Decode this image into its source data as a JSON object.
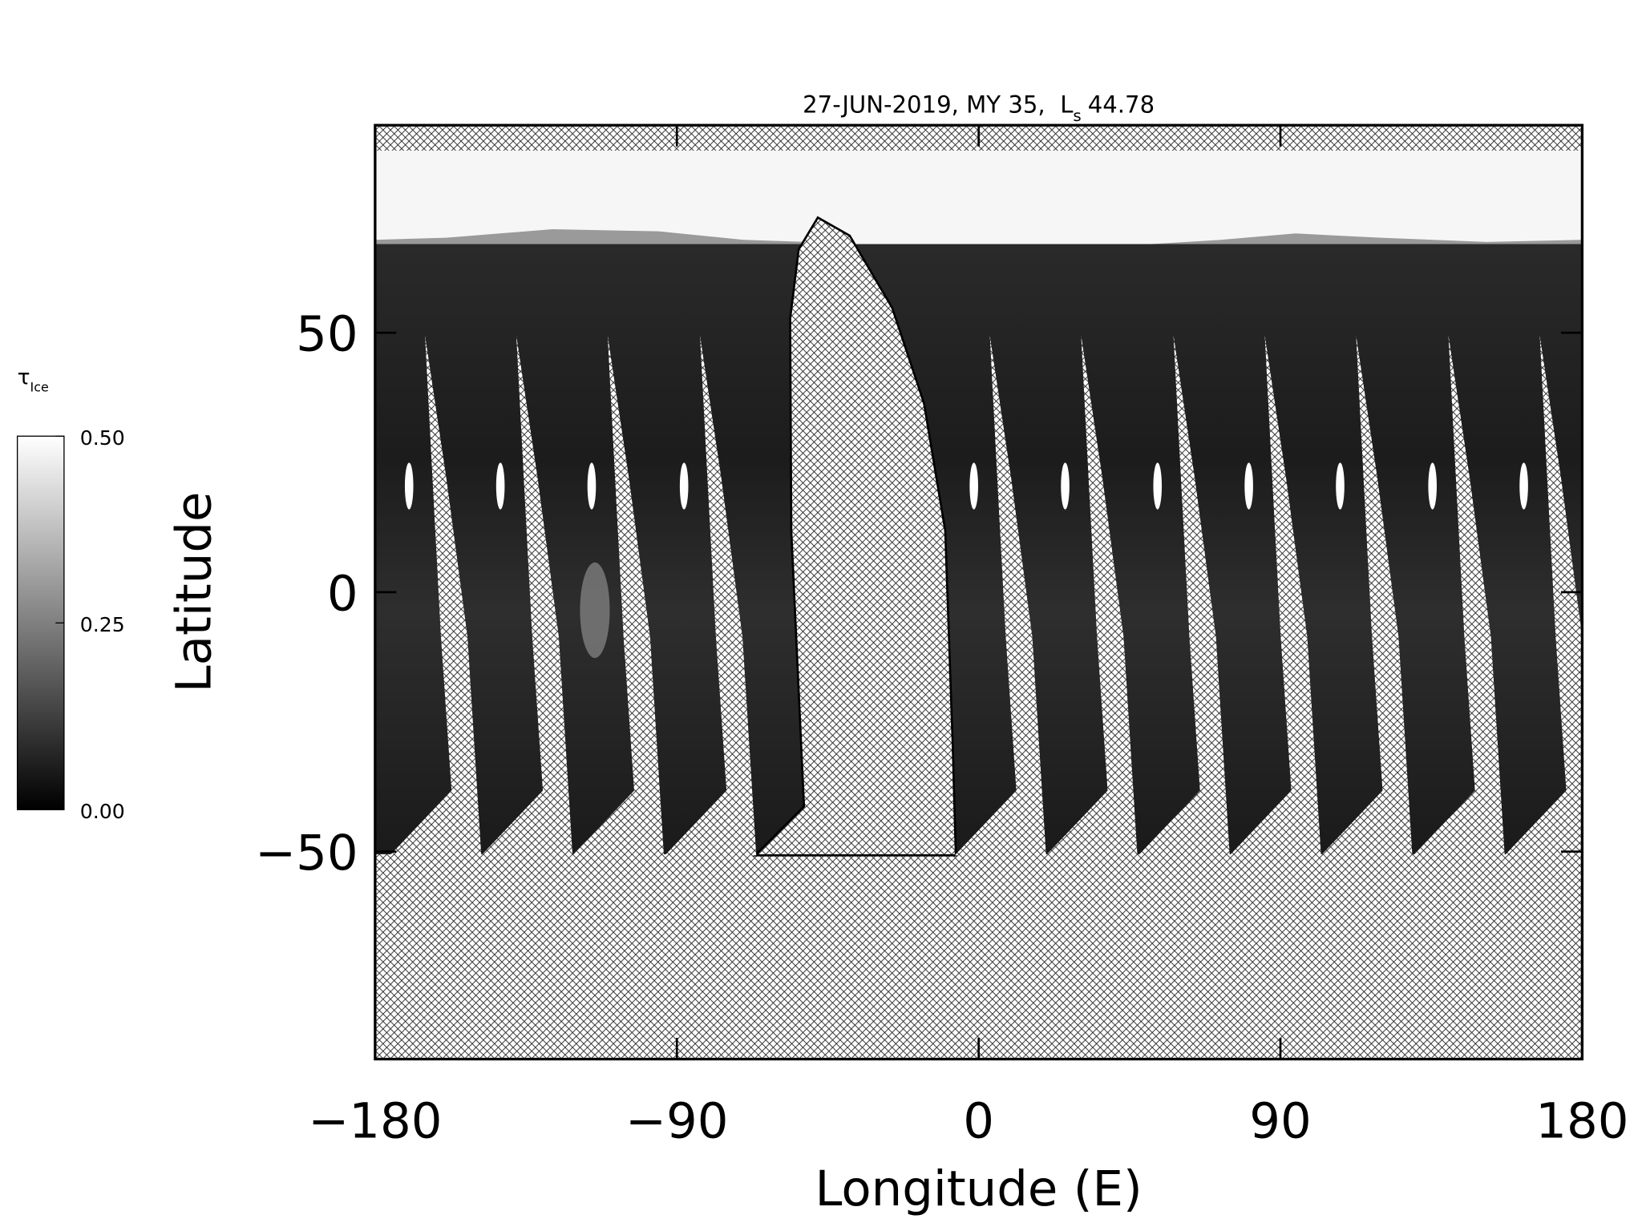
{
  "chart_data": {
    "type": "map",
    "title": {
      "text": "27-JUN-2019, MY 35,",
      "ls_symbol": "L",
      "ls_subscript": "s",
      "ls_value": 44.78
    },
    "xlabel": "Longitude (E)",
    "ylabel": "Latitude",
    "xlim": [
      -180,
      180
    ],
    "ylim": [
      -90,
      90
    ],
    "xticks": [
      {
        "value": -180,
        "label": "−180"
      },
      {
        "value": -90,
        "label": "−90"
      },
      0,
      90,
      180
    ],
    "yticks": [
      {
        "value": -50,
        "label": "−50"
      },
      0,
      50
    ],
    "colorbar": {
      "label": "τ",
      "label_subscript": "Ice",
      "lim": [
        0,
        0.5
      ],
      "ticks": [
        {
          "value": 0,
          "label": "0.00"
        },
        {
          "value": 0.25,
          "label": "0.25"
        },
        {
          "value": 0.5,
          "label": "0.50"
        }
      ],
      "colormap": "gray"
    }
  }
}
